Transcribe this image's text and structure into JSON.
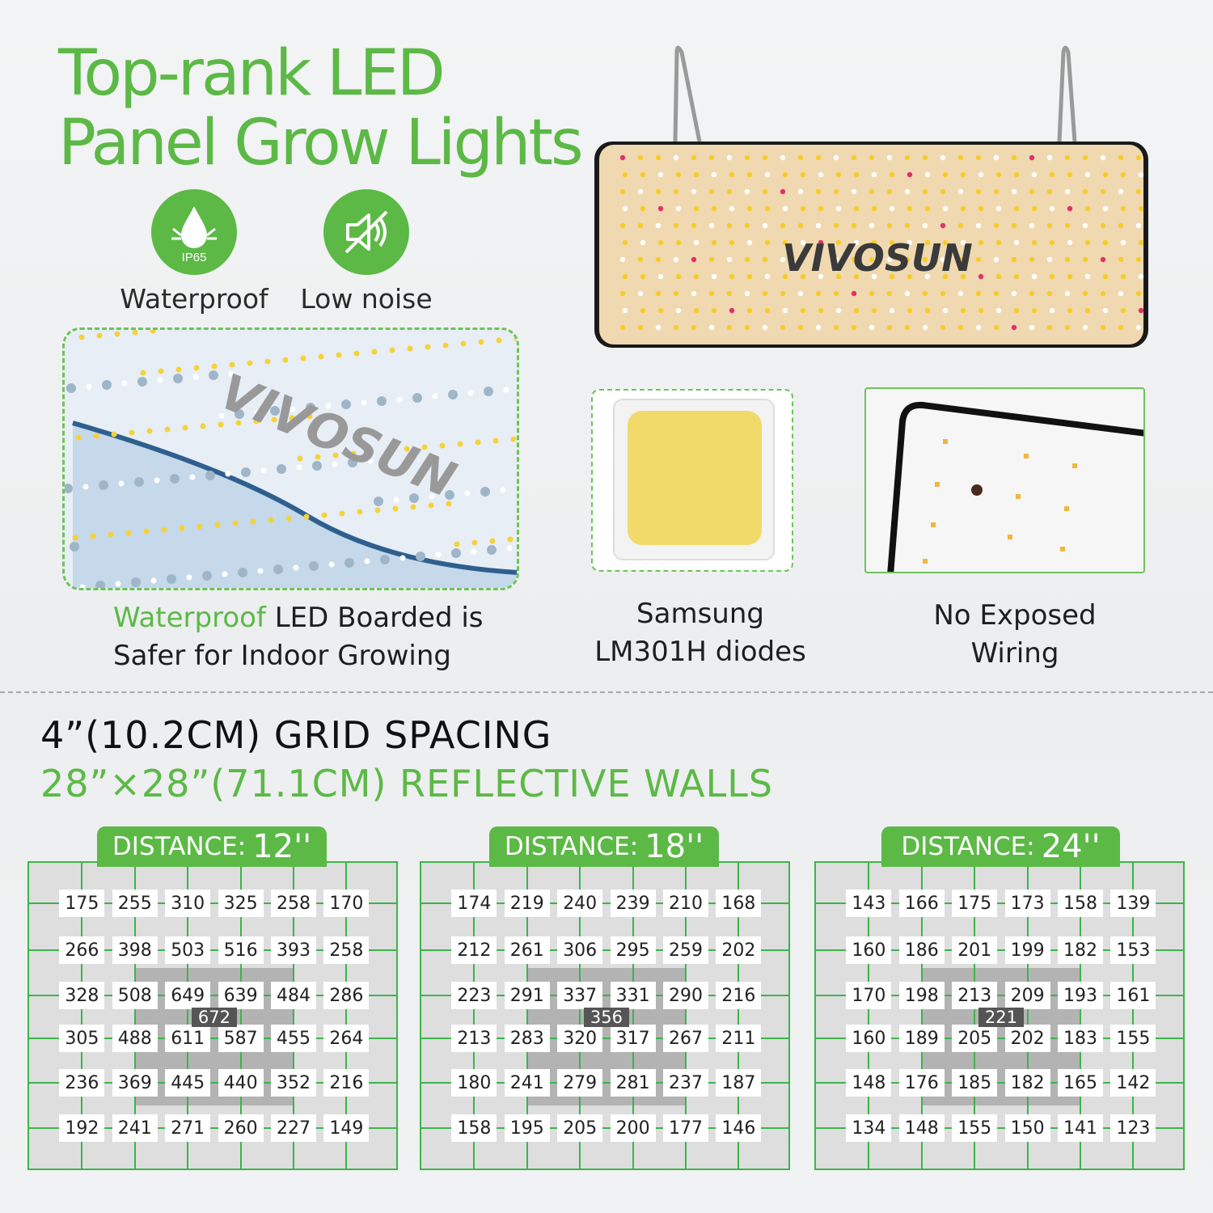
{
  "title": {
    "line1": "Top-rank LED",
    "line2": "Panel Grow Lights"
  },
  "features": [
    {
      "icon": "water-drop-icon",
      "badge": "IP65",
      "label": "Waterproof"
    },
    {
      "icon": "muted-speaker-icon",
      "label": "Low noise"
    }
  ],
  "panel_logo": "VIVOSUN",
  "captions": {
    "waterproof_highlight": "Waterproof",
    "waterproof_rest1": " LED Boarded is",
    "waterproof_rest2": "Safer for Indoor Growing",
    "samsung1": "Samsung",
    "samsung2": "LM301H diodes",
    "wiring1": "No Exposed",
    "wiring2": "Wiring"
  },
  "spacing_heading": "4”(10.2CM) GRID SPACING",
  "walls_heading": "28”×28”(71.1CM) REFLECTIVE WALLS",
  "colors": {
    "brand_green": "#5cb946",
    "grid_green": "#3bb54a"
  },
  "grids": [
    {
      "label": "DISTANCE:",
      "distance": "12''",
      "center": "672",
      "rows": [
        [
          "175",
          "255",
          "310",
          "325",
          "258",
          "170"
        ],
        [
          "266",
          "398",
          "503",
          "516",
          "393",
          "258"
        ],
        [
          "328",
          "508",
          "649",
          "639",
          "484",
          "286"
        ],
        [
          "305",
          "488",
          "611",
          "587",
          "455",
          "264"
        ],
        [
          "236",
          "369",
          "445",
          "440",
          "352",
          "216"
        ],
        [
          "192",
          "241",
          "271",
          "260",
          "227",
          "149"
        ]
      ]
    },
    {
      "label": "DISTANCE:",
      "distance": "18''",
      "center": "356",
      "rows": [
        [
          "174",
          "219",
          "240",
          "239",
          "210",
          "168"
        ],
        [
          "212",
          "261",
          "306",
          "295",
          "259",
          "202"
        ],
        [
          "223",
          "291",
          "337",
          "331",
          "290",
          "216"
        ],
        [
          "213",
          "283",
          "320",
          "317",
          "267",
          "211"
        ],
        [
          "180",
          "241",
          "279",
          "281",
          "237",
          "187"
        ],
        [
          "158",
          "195",
          "205",
          "200",
          "177",
          "146"
        ]
      ]
    },
    {
      "label": "DISTANCE:",
      "distance": "24''",
      "center": "221",
      "rows": [
        [
          "143",
          "166",
          "175",
          "173",
          "158",
          "139"
        ],
        [
          "160",
          "186",
          "201",
          "199",
          "182",
          "153"
        ],
        [
          "170",
          "198",
          "213",
          "209",
          "193",
          "161"
        ],
        [
          "160",
          "189",
          "205",
          "202",
          "183",
          "155"
        ],
        [
          "148",
          "176",
          "185",
          "182",
          "165",
          "142"
        ],
        [
          "134",
          "148",
          "155",
          "150",
          "141",
          "123"
        ]
      ]
    }
  ]
}
